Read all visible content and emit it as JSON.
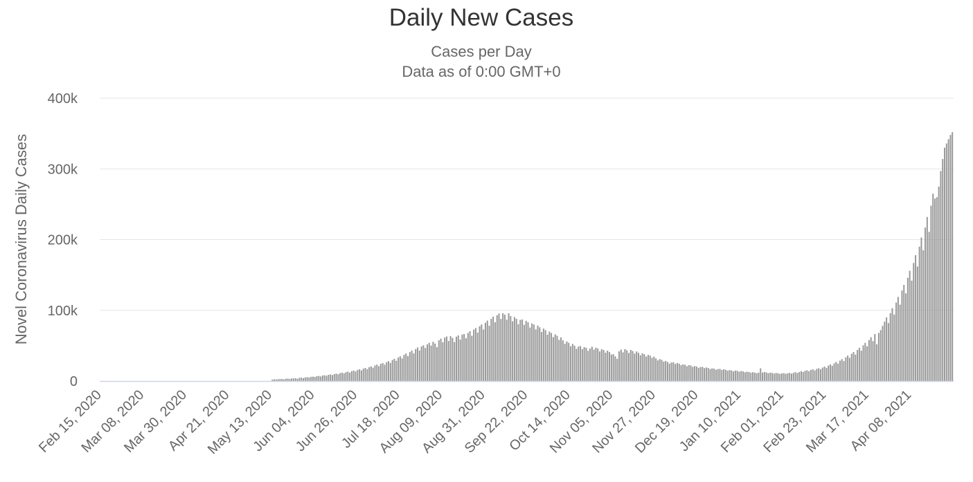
{
  "chart_data": {
    "type": "bar",
    "title": "Daily New Cases",
    "subtitle": [
      "Cases per Day",
      "Data as of 0:00 GMT+0"
    ],
    "xlabel": "",
    "ylabel": "Novel Coronavirus Daily Cases",
    "ylim": [
      0,
      400000
    ],
    "yticks": [
      "0",
      "100k",
      "200k",
      "300k",
      "400k"
    ],
    "xticks": [
      "Feb 15, 2020",
      "Mar 08, 2020",
      "Mar 30, 2020",
      "Apr 21, 2020",
      "May 13, 2020",
      "Jun 04, 2020",
      "Jun 26, 2020",
      "Jul 18, 2020",
      "Aug 09, 2020",
      "Aug 31, 2020",
      "Sep 22, 2020",
      "Oct 14, 2020",
      "Nov 05, 2020",
      "Nov 27, 2020",
      "Dec 19, 2020",
      "Jan 10, 2021",
      "Feb 01, 2021",
      "Feb 23, 2021",
      "Mar 17, 2021",
      "Apr 08, 2021"
    ],
    "grid": true,
    "color": "#999999",
    "series": [
      {
        "values": [
          0,
          0,
          0,
          0,
          0,
          0,
          0,
          0,
          0,
          0,
          0,
          0,
          0,
          0,
          0,
          0,
          0,
          0,
          0,
          0,
          0,
          0,
          0,
          0,
          0,
          0,
          0,
          0,
          0,
          0,
          0,
          0,
          0,
          0,
          0,
          0,
          0,
          0,
          0,
          0,
          0,
          0,
          0,
          0,
          0,
          0,
          0,
          0,
          0,
          0,
          0,
          0,
          0,
          0,
          0,
          0,
          0,
          0,
          0,
          0,
          0,
          0,
          0,
          0,
          0,
          0,
          0,
          0,
          0,
          0,
          0,
          0,
          0,
          0,
          0,
          0,
          0,
          0,
          0,
          0,
          0,
          0,
          0,
          0,
          0,
          0,
          0,
          0,
          2000,
          2500,
          2300,
          2600,
          2800,
          3000,
          2400,
          3200,
          3500,
          2900,
          3800,
          3600,
          4000,
          3300,
          4500,
          4800,
          4200,
          5200,
          5500,
          4900,
          6000,
          6200,
          5800,
          6900,
          7200,
          6500,
          7800,
          8200,
          7400,
          8800,
          9300,
          8500,
          9800,
          10500,
          9600,
          11200,
          11800,
          10800,
          12500,
          13200,
          11900,
          14000,
          14800,
          13500,
          15800,
          16600,
          15000,
          17500,
          18500,
          16800,
          19600,
          20800,
          18900,
          22000,
          23200,
          21000,
          24300,
          25500,
          23100,
          26800,
          28200,
          25600,
          29800,
          31500,
          28600,
          33300,
          35100,
          32000,
          37000,
          38900,
          35300,
          40900,
          43000,
          39000,
          45200,
          47500,
          43100,
          49000,
          50500,
          46800,
          52000,
          54000,
          50200,
          55500,
          53000,
          48000,
          57500,
          60000,
          54800,
          61500,
          63000,
          56700,
          63500,
          61000,
          55200,
          62800,
          64500,
          58600,
          65800,
          66500,
          60500,
          68000,
          70500,
          64000,
          72800,
          75000,
          68500,
          77500,
          80000,
          72900,
          82500,
          85500,
          78300,
          88000,
          91000,
          83100,
          93000,
          95500,
          87800,
          96000,
          94000,
          86800,
          95800,
          92000,
          84500,
          90500,
          88000,
          80400,
          86500,
          87000,
          79500,
          85200,
          83000,
          75700,
          81500,
          80000,
          73100,
          78500,
          76000,
          69400,
          74200,
          72000,
          65500,
          70000,
          68000,
          62100,
          66000,
          64000,
          58200,
          61800,
          57500,
          52600,
          56000,
          54000,
          49200,
          52500,
          50000,
          45600,
          48800,
          49500,
          45200,
          48000,
          47000,
          42800,
          46000,
          48500,
          44300,
          47200,
          46000,
          41900,
          45000,
          44000,
          40100,
          43000,
          41000,
          37500,
          38000,
          35000,
          31500,
          42000,
          44500,
          40600,
          45000,
          43500,
          39700,
          44000,
          42500,
          38800,
          41800,
          40000,
          36500,
          39200,
          38000,
          34700,
          37000,
          36000,
          32800,
          34500,
          32000,
          29200,
          31000,
          30000,
          27400,
          28500,
          27000,
          24600,
          26200,
          26500,
          24200,
          25500,
          24500,
          22400,
          23600,
          23000,
          21000,
          22500,
          22000,
          20100,
          21200,
          20500,
          18700,
          19800,
          20000,
          18300,
          19200,
          18500,
          16900,
          18000,
          17500,
          16000,
          17000,
          17200,
          15700,
          16600,
          16000,
          14600,
          15500,
          15000,
          13700,
          14800,
          14500,
          13200,
          14100,
          13600,
          12400,
          13200,
          12800,
          11700,
          12500,
          12000,
          11000,
          11900,
          18000,
          12000,
          12800,
          12200,
          11100,
          12000,
          11500,
          10500,
          11400,
          11000,
          10100,
          10900,
          11200,
          10200,
          11000,
          11500,
          10500,
          11600,
          12500,
          11400,
          12800,
          14000,
          12800,
          14500,
          15200,
          13900,
          15800,
          16500,
          15100,
          17200,
          18200,
          16600,
          19000,
          20500,
          18700,
          21800,
          23500,
          21500,
          25000,
          27000,
          24600,
          28800,
          31000,
          28200,
          33500,
          36000,
          32800,
          38500,
          41000,
          37400,
          44000,
          47000,
          42900,
          50500,
          54000,
          49200,
          58000,
          62000,
          56500,
          66500,
          52000,
          68000,
          72000,
          78000,
          84000,
          90000,
          82000,
          96000,
          103000,
          94000,
          111000,
          119000,
          108000,
          128000,
          136000,
          124000,
          146000,
          156000,
          142000,
          167000,
          178000,
          162000,
          190000,
          203000,
          185000,
          217000,
          232000,
          211000,
          248000,
          265000,
          258000,
          260000,
          275000,
          297000,
          314000,
          330000,
          336000,
          342000,
          348000,
          352000
        ]
      }
    ]
  }
}
